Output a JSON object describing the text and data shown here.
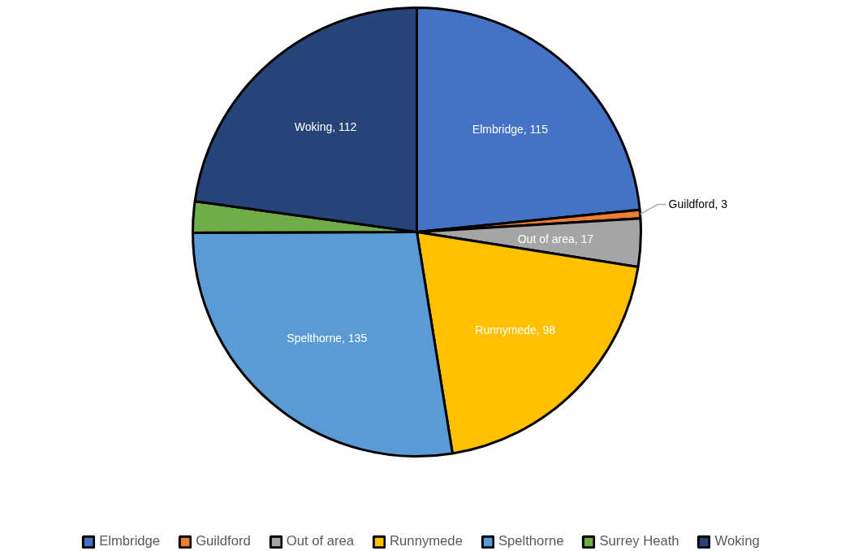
{
  "chart_data": {
    "type": "pie",
    "categories": [
      "Elmbridge",
      "Guildford",
      "Out of area",
      "Runnymede",
      "Spelthorne",
      "Surrey Heath",
      "Woking"
    ],
    "values": [
      115,
      3,
      17,
      98,
      135,
      11,
      112
    ],
    "colors": [
      "#4472c4",
      "#ed7d31",
      "#a5a5a5",
      "#ffc000",
      "#5b9bd5",
      "#70ad47",
      "#264478"
    ],
    "value_labels": [
      "Elmbridge, 115",
      "Guildford, 3",
      "Out of area, 17",
      "Runnymede, 98",
      "Spelthorne, 135",
      null,
      "Woking, 112"
    ],
    "legend": "bottom"
  }
}
